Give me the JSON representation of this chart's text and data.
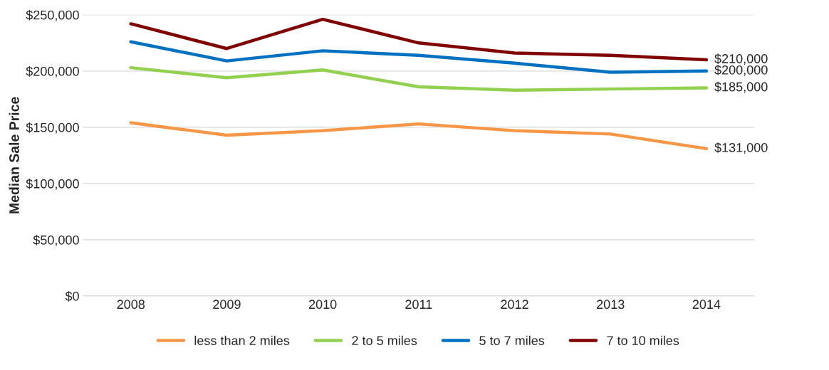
{
  "chart_data": {
    "type": "line",
    "ylabel": "Median Sale Price",
    "categories": [
      "2008",
      "2009",
      "2010",
      "2011",
      "2012",
      "2013",
      "2014"
    ],
    "series": [
      {
        "name": "less than 2 miles",
        "color": "#f79646",
        "values": [
          154000,
          143000,
          147000,
          153000,
          147000,
          144000,
          131000
        ],
        "value_labels": [
          null,
          null,
          null,
          null,
          null,
          null,
          "$131,000"
        ]
      },
      {
        "name": "2 to 5 miles",
        "color": "#92d050",
        "values": [
          203000,
          194000,
          201000,
          186000,
          183000,
          184000,
          185000
        ],
        "value_labels": [
          null,
          null,
          null,
          null,
          null,
          null,
          "$185,000"
        ]
      },
      {
        "name": "5 to 7 miles",
        "color": "#0070c0",
        "values": [
          226000,
          209000,
          218000,
          214000,
          207000,
          199000,
          200000
        ],
        "value_labels": [
          null,
          null,
          null,
          null,
          null,
          null,
          "$200,000"
        ]
      },
      {
        "name": "7 to 10 miles",
        "color": "#800000",
        "values": [
          242000,
          220000,
          246000,
          225000,
          216000,
          214000,
          210000
        ],
        "value_labels": [
          null,
          null,
          null,
          null,
          null,
          null,
          "$210,000"
        ]
      }
    ],
    "ylim": [
      0,
      250000
    ],
    "yticks": [
      {
        "value": 0,
        "label": "$0"
      },
      {
        "value": 50000,
        "label": "$50,000"
      },
      {
        "value": 100000,
        "label": "$100,000"
      },
      {
        "value": 150000,
        "label": "$150,000"
      },
      {
        "value": 200000,
        "label": "$200,000"
      },
      {
        "value": 250000,
        "label": "$250,000"
      }
    ],
    "grid": "y",
    "legend": "bottom",
    "marker": "none",
    "line_style": "solid"
  }
}
